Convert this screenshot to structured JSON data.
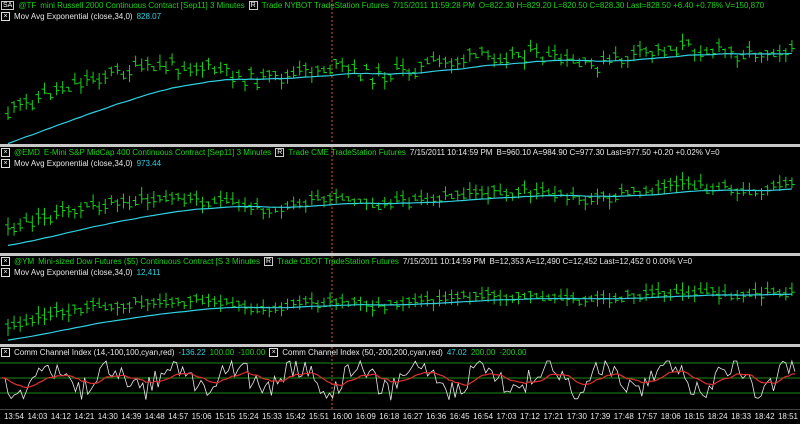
{
  "panes": [
    {
      "symbol_box": "SA",
      "symbol": "@TF",
      "description": "mini Russell 2000 Continuous Contract [Sep11]  3 Minutes",
      "r_box": "R",
      "info": "Trade  NYBOT  TradeStation  Futures",
      "datetime": "7/15/2011  11:59:28 PM",
      "quote": "O=822.30  H=829.20  L=820.50  C=828.30  Last=828.50  +6.40  +0.78%  V=150,870",
      "indicator_label": "Mov Avg Exponential  (close,34,0)",
      "indicator_value": "828.07"
    },
    {
      "symbol": "@EMD",
      "description": "E-Mini S&P MidCap 400 Continuous Contract [Sep11]  3 Minutes",
      "r_box": "R",
      "info": "Trade  CME  TradeStation  Futures",
      "datetime": "7/15/2011  10:14:59 PM",
      "quote": "B=960.10  A=984.90  C=977.30  Last=977.50  +0.20  +0.02%  V=0",
      "indicator_label": "Mov Avg Exponential  (close,34,0)",
      "indicator_value": "973.44"
    },
    {
      "symbol": "@YM",
      "description": "Mini-sized Dow Futures ($5) Continuous Contract [S  3 Minutes",
      "r_box": "R",
      "info": "Trade  CBOT  TradeStation  Futures",
      "datetime": "7/15/2011  10:14:59 PM",
      "quote": "B=12,353  A=12,490  C=12,452  Last=12,452  0  0.00%  V=0",
      "indicator_label": "Mov Avg Exponential  (close,34,0)",
      "indicator_value": "12,411"
    }
  ],
  "cci": {
    "label1": "Comm Channel Index  (14,-100,100,cyan,red)",
    "values1": [
      "-136.22",
      "100.00",
      "-100.00"
    ],
    "label2": "Comm Channel Index  (50,-200,200,cyan,red)",
    "values2": [
      "47.02",
      "200.00",
      "-200.00"
    ]
  },
  "time_axis": [
    "13:54",
    "14:03",
    "14:12",
    "14:21",
    "14:30",
    "14:39",
    "14:48",
    "14:57",
    "15:06",
    "15:15",
    "15:24",
    "15:33",
    "15:42",
    "15:51",
    "16:00",
    "16:09",
    "16:18",
    "16:27",
    "16:36",
    "16:45",
    "16:54",
    "17:03",
    "17:12",
    "17:21",
    "17:30",
    "17:39",
    "17:48",
    "17:57",
    "18:06",
    "18:15",
    "18:24",
    "18:33",
    "18:42",
    "18:51"
  ],
  "colors": {
    "price_bars": "#19d219",
    "ema": "#2fd0e0",
    "cci_fast": "#e8e8e8",
    "cci_slow": "#e03030",
    "divider": "#c8c8c8",
    "session_line": "#d06010"
  }
}
